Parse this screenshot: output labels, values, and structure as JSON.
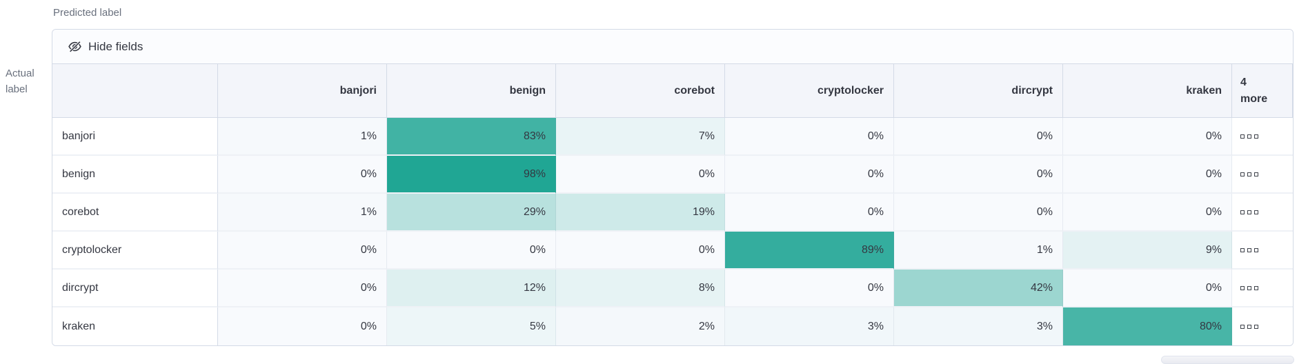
{
  "axes": {
    "predicted_label": "Predicted label",
    "actual_label": "Actual label"
  },
  "toolbar": {
    "hide_fields_label": "Hide fields"
  },
  "grid": {
    "columns": [
      "banjori",
      "benign",
      "corebot",
      "cryptolocker",
      "dircrypt",
      "kraken"
    ],
    "more_column_label": "4 more",
    "rows": [
      {
        "label": "banjori",
        "values": [
          "1%",
          "83%",
          "7%",
          "0%",
          "0%",
          "0%"
        ]
      },
      {
        "label": "benign",
        "values": [
          "0%",
          "98%",
          "0%",
          "0%",
          "0%",
          "0%"
        ]
      },
      {
        "label": "corebot",
        "values": [
          "1%",
          "29%",
          "19%",
          "0%",
          "0%",
          "0%"
        ]
      },
      {
        "label": "cryptolocker",
        "values": [
          "0%",
          "0%",
          "0%",
          "89%",
          "1%",
          "9%"
        ]
      },
      {
        "label": "dircrypt",
        "values": [
          "0%",
          "12%",
          "8%",
          "0%",
          "42%",
          "0%"
        ]
      },
      {
        "label": "kraken",
        "values": [
          "0%",
          "5%",
          "2%",
          "3%",
          "3%",
          "80%"
        ]
      }
    ]
  },
  "colors": {
    "heat_zero": "#f8fafd",
    "heat_full": "#1ca492",
    "text": "#343741",
    "muted_text": "#69707d",
    "panel_border": "#d3dae6",
    "header_bg": "#f3f5fa"
  }
}
